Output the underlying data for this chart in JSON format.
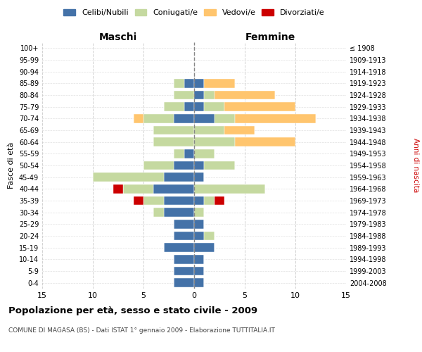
{
  "age_groups": [
    "100+",
    "95-99",
    "90-94",
    "85-89",
    "80-84",
    "75-79",
    "70-74",
    "65-69",
    "60-64",
    "55-59",
    "50-54",
    "45-49",
    "40-44",
    "35-39",
    "30-34",
    "25-29",
    "20-24",
    "15-19",
    "10-14",
    "5-9",
    "0-4"
  ],
  "birth_years": [
    "≤ 1908",
    "1909-1913",
    "1914-1918",
    "1919-1923",
    "1924-1928",
    "1929-1933",
    "1934-1938",
    "1939-1943",
    "1944-1948",
    "1949-1953",
    "1954-1958",
    "1959-1963",
    "1964-1968",
    "1969-1973",
    "1974-1978",
    "1979-1983",
    "1984-1988",
    "1989-1993",
    "1994-1998",
    "1999-2003",
    "2004-2008"
  ],
  "maschi": {
    "celibi": [
      0,
      0,
      0,
      1,
      0,
      1,
      2,
      0,
      0,
      1,
      2,
      3,
      4,
      3,
      3,
      2,
      2,
      3,
      2,
      2,
      2
    ],
    "coniugati": [
      0,
      0,
      0,
      1,
      2,
      2,
      3,
      4,
      4,
      1,
      3,
      7,
      3,
      2,
      1,
      0,
      0,
      0,
      0,
      0,
      0
    ],
    "vedovi": [
      0,
      0,
      0,
      0,
      0,
      0,
      1,
      0,
      0,
      0,
      0,
      0,
      0,
      0,
      0,
      0,
      0,
      0,
      0,
      0,
      0
    ],
    "divorziati": [
      0,
      0,
      0,
      0,
      0,
      0,
      0,
      0,
      0,
      0,
      0,
      0,
      1,
      1,
      0,
      0,
      0,
      0,
      0,
      0,
      0
    ]
  },
  "femmine": {
    "nubili": [
      0,
      0,
      0,
      1,
      1,
      1,
      2,
      0,
      0,
      0,
      1,
      1,
      0,
      1,
      0,
      1,
      1,
      2,
      1,
      1,
      1
    ],
    "coniugate": [
      0,
      0,
      0,
      0,
      1,
      2,
      2,
      3,
      4,
      2,
      3,
      0,
      7,
      1,
      1,
      0,
      1,
      0,
      0,
      0,
      0
    ],
    "vedove": [
      0,
      0,
      0,
      3,
      6,
      7,
      8,
      3,
      6,
      0,
      0,
      0,
      0,
      0,
      0,
      0,
      0,
      0,
      0,
      0,
      0
    ],
    "divorziate": [
      0,
      0,
      0,
      0,
      0,
      0,
      0,
      0,
      0,
      0,
      0,
      0,
      0,
      1,
      0,
      0,
      0,
      0,
      0,
      0,
      0
    ]
  },
  "colors": {
    "celibi": "#4472a8",
    "coniugati": "#c5d9a0",
    "vedovi": "#ffc56e",
    "divorziati": "#cc0000"
  },
  "xlim": 15,
  "title": "Popolazione per età, sesso e stato civile - 2009",
  "subtitle": "COMUNE DI MAGASA (BS) - Dati ISTAT 1° gennaio 2009 - Elaborazione TUTTITALIA.IT",
  "ylabel_left": "Fasce di età",
  "ylabel_right": "Anni di nascita",
  "xlabel_left": "Maschi",
  "xlabel_right": "Femmine",
  "bg_color": "#ffffff",
  "grid_color": "#cccccc"
}
